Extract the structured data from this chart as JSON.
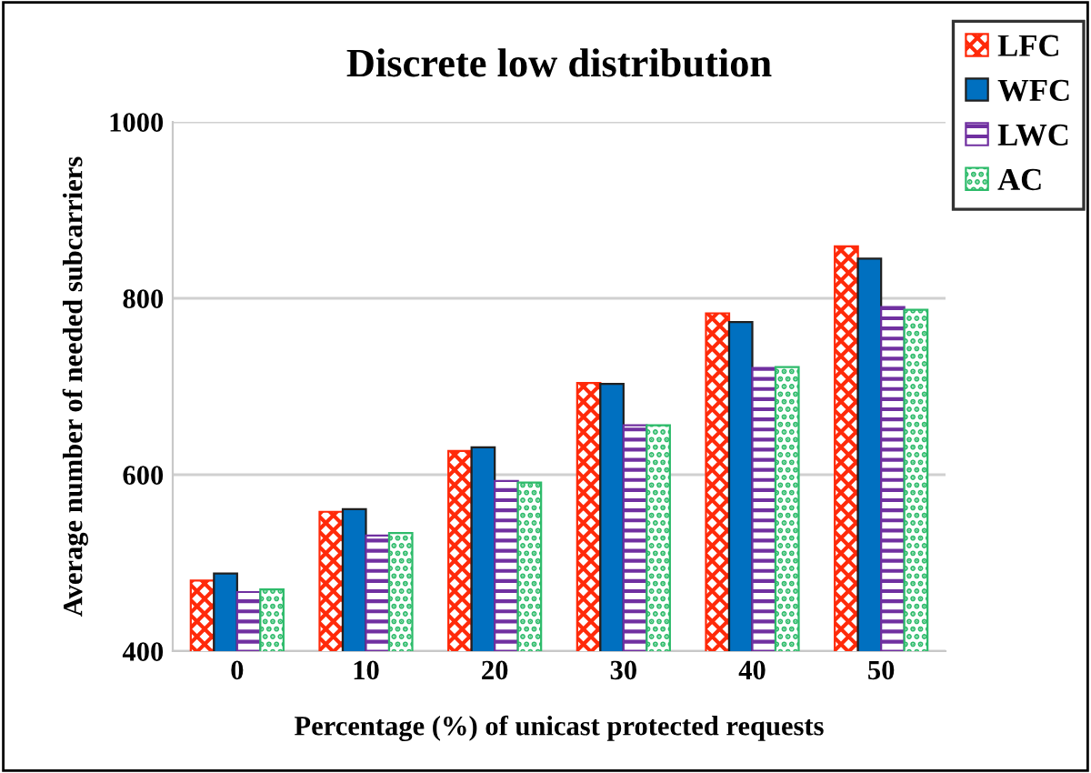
{
  "chart_data": {
    "type": "bar",
    "title": "Discrete low distribution",
    "xlabel": "Percentage (%) of unicast protected requests",
    "ylabel": "Average number of needed subcarriers",
    "categories": [
      "0",
      "10",
      "20",
      "30",
      "40",
      "50"
    ],
    "series": [
      {
        "name": "LFC",
        "color": "#ff2a0a",
        "values": [
          480,
          558,
          627,
          704,
          783,
          859
        ]
      },
      {
        "name": "WFC",
        "color": "#0070c0",
        "values": [
          488,
          561,
          631,
          703,
          773,
          845
        ]
      },
      {
        "name": "LWC",
        "color": "#7030a0",
        "values": [
          467,
          531,
          593,
          656,
          721,
          790
        ]
      },
      {
        "name": "AC",
        "color": "#2dbb6a",
        "values": [
          470,
          534,
          591,
          656,
          722,
          787
        ]
      }
    ],
    "ylim": [
      400,
      1000
    ],
    "yticks": [
      400,
      600,
      800,
      1000
    ],
    "grid": "y",
    "legend": "top right"
  }
}
